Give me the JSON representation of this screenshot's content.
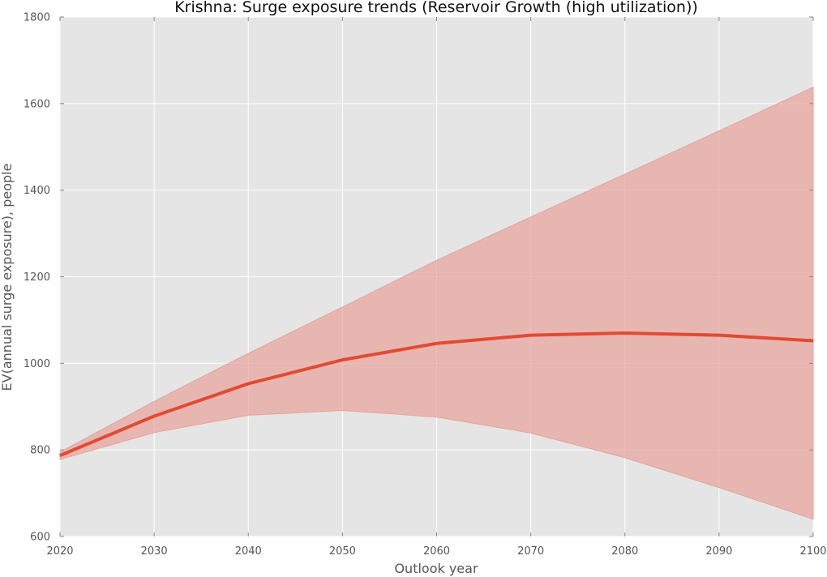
{
  "chart_data": {
    "type": "line",
    "title": "Krishna: Surge exposure trends (Reservoir Growth (high utilization))",
    "xlabel": "Outlook year",
    "ylabel": "EV(annual surge exposure), people",
    "xlim": [
      2020,
      2100
    ],
    "ylim": [
      600,
      1800
    ],
    "x_ticks": [
      "2020",
      "2030",
      "2040",
      "2050",
      "2060",
      "2070",
      "2080",
      "2090",
      "2100"
    ],
    "y_ticks": [
      "600",
      "800",
      "1000",
      "1200",
      "1400",
      "1600",
      "1800"
    ],
    "grid": true,
    "x": [
      2020,
      2030,
      2040,
      2050,
      2060,
      2070,
      2080,
      2090,
      2100
    ],
    "series": [
      {
        "values": [
          787,
          878,
          953,
          1008,
          1046,
          1065,
          1070,
          1065,
          1052
        ],
        "band_lower": [
          778,
          840,
          880,
          891,
          876,
          839,
          782,
          713,
          640
        ],
        "band_upper": [
          795,
          912,
          1023,
          1130,
          1238,
          1338,
          1437,
          1537,
          1638
        ],
        "color": "#e24a33",
        "band_color": "#e8a29a"
      }
    ],
    "background_color": "#e5e5e5",
    "grid_color": "#ffffff"
  }
}
